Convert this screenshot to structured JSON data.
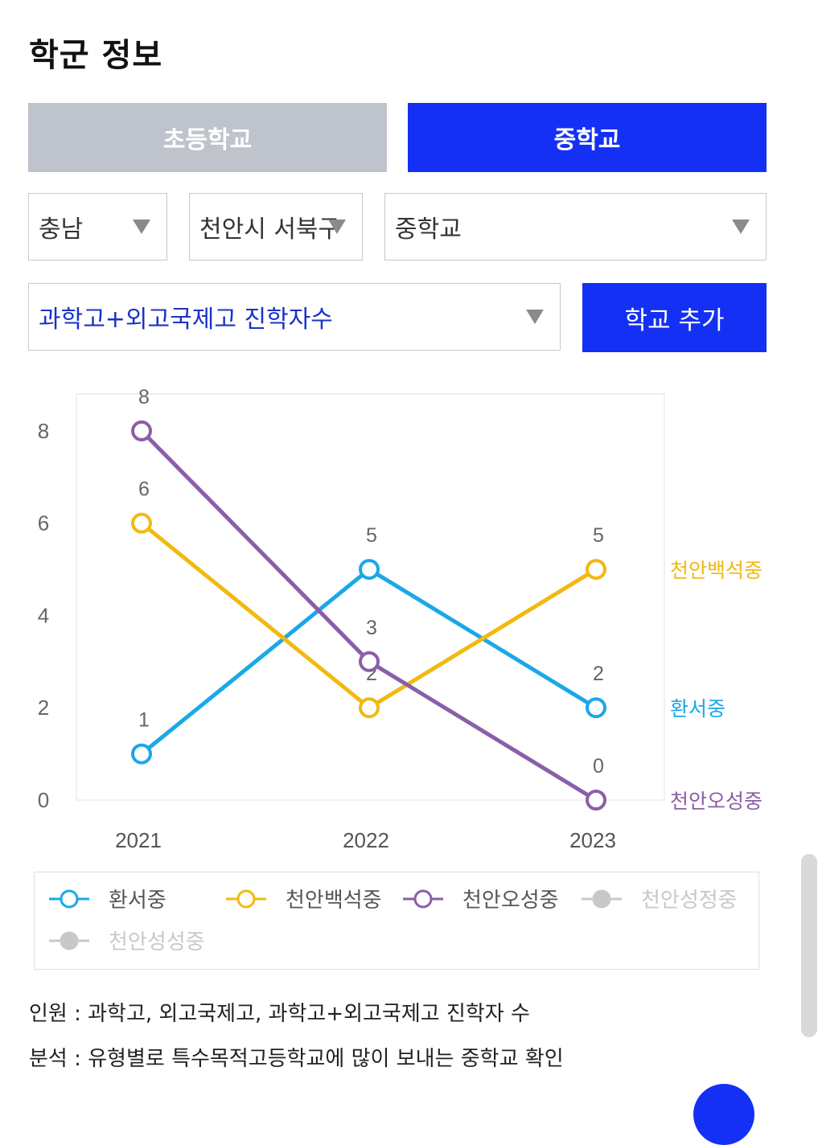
{
  "page": {
    "title": "학군 정보"
  },
  "tabs": [
    {
      "label": "초등학교",
      "active": false
    },
    {
      "label": "중학교",
      "active": true
    }
  ],
  "filters": {
    "province": "충남",
    "city": "천안시 서북구",
    "school_level": "중학교",
    "metric": "과학고+외고국제고 진학자수",
    "add_button": "학교 추가"
  },
  "chart_data": {
    "type": "line",
    "title": "",
    "xlabel": "",
    "ylabel": "",
    "categories": [
      "2021",
      "2022",
      "2023"
    ],
    "yticks": [
      "0",
      "2",
      "4",
      "6",
      "8"
    ],
    "ylim": [
      0,
      8.8
    ],
    "grid": false,
    "series": [
      {
        "name": "환서중",
        "values": [
          1,
          5,
          2
        ],
        "color": "#1aa8e8"
      },
      {
        "name": "천안백석중",
        "values": [
          6,
          2,
          5
        ],
        "color": "#f2b90f"
      },
      {
        "name": "천안오성중",
        "values": [
          8,
          3,
          0
        ],
        "color": "#8a5ea8"
      }
    ]
  },
  "legend": {
    "items": [
      {
        "name": "환서중",
        "color": "#1aa8e8",
        "enabled": true
      },
      {
        "name": "천안백석중",
        "color": "#f2b90f",
        "enabled": true
      },
      {
        "name": "천안오성중",
        "color": "#8a5ea8",
        "enabled": true
      },
      {
        "name": "천안성정중",
        "color": "#c8c8c8",
        "enabled": false
      },
      {
        "name": "천안성성중",
        "color": "#c8c8c8",
        "enabled": false
      }
    ]
  },
  "notes": {
    "personnel": "인원 : 과학고, 외고국제고, 과학고+외고국제고 진학자 수",
    "analysis": "분석 : 유형별로 특수목적고등학교에 많이 보내는 중학교 확인"
  }
}
